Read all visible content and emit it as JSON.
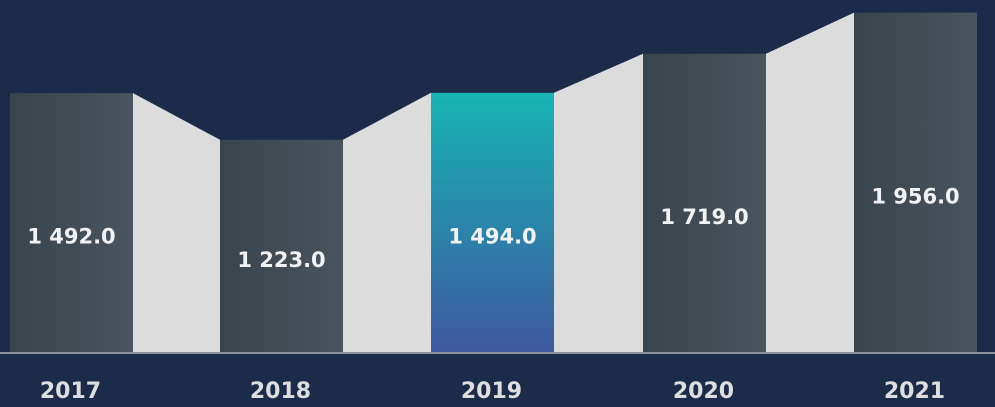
{
  "chart_data": {
    "type": "bar",
    "categories": [
      "2017",
      "2018",
      "2019",
      "2020",
      "2021"
    ],
    "values": [
      1492,
      1223,
      1494,
      1719,
      1956
    ],
    "value_labels": [
      "1 492.0",
      "1 223.0",
      "1 494.0",
      "1 719.0",
      "1 956.0"
    ],
    "colors": [
      "#3a444c",
      "#3a444c",
      "#17b4b4",
      "#3a444c",
      "#3a444c"
    ],
    "colors_end": [
      "#4a545e",
      "#4a545e",
      "#3e58a0",
      "#4a545e",
      "#4a545e"
    ],
    "connector_color": "#dcdcdc",
    "ylim": [
      0,
      2000
    ]
  }
}
